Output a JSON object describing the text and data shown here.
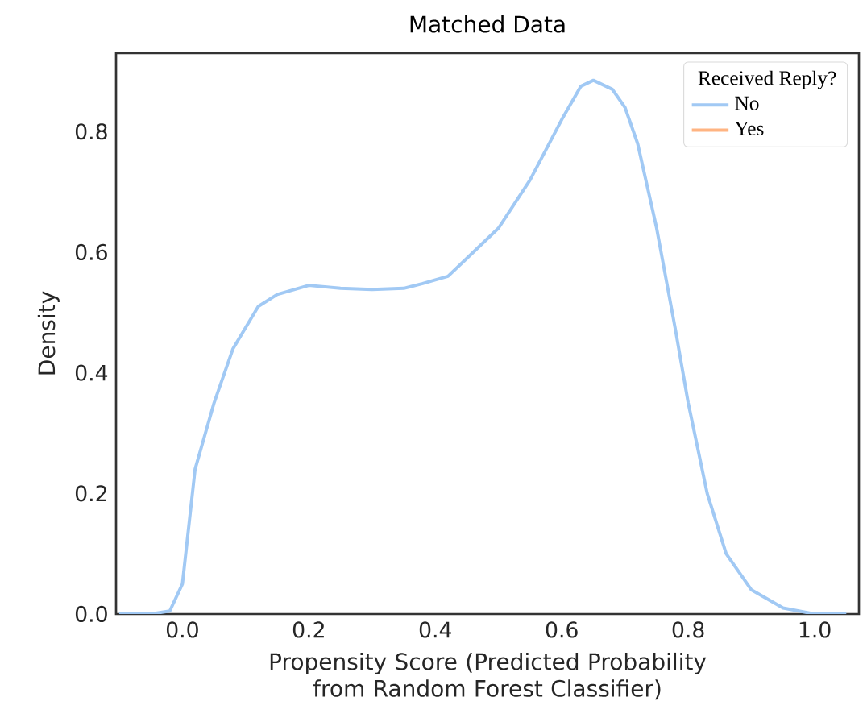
{
  "chart_data": {
    "type": "line",
    "title": "Matched Data",
    "xlabel": "Propensity Score (Predicted Probability from Random Forest Classifier)",
    "ylabel": "Density",
    "legend_title": "Received Reply?",
    "x": [
      -0.1,
      -0.05,
      -0.02,
      0.0,
      0.02,
      0.05,
      0.08,
      0.12,
      0.15,
      0.2,
      0.25,
      0.3,
      0.35,
      0.38,
      0.42,
      0.45,
      0.5,
      0.55,
      0.6,
      0.63,
      0.65,
      0.68,
      0.7,
      0.72,
      0.75,
      0.78,
      0.8,
      0.83,
      0.86,
      0.9,
      0.95,
      1.0,
      1.05
    ],
    "series": [
      {
        "name": "No",
        "color": "#a1c9f4",
        "values": [
          0.0,
          0.0,
          0.005,
          0.05,
          0.24,
          0.35,
          0.44,
          0.51,
          0.53,
          0.545,
          0.54,
          0.538,
          0.54,
          0.548,
          0.56,
          0.59,
          0.64,
          0.72,
          0.82,
          0.875,
          0.885,
          0.87,
          0.84,
          0.78,
          0.64,
          0.47,
          0.35,
          0.2,
          0.1,
          0.04,
          0.01,
          0.0,
          0.0
        ]
      },
      {
        "name": "Yes",
        "color": "#ffb482",
        "values": [
          null,
          null,
          null,
          null,
          null,
          null,
          null,
          null,
          null,
          null,
          null,
          null,
          null,
          null,
          null,
          null,
          null,
          null,
          null,
          null,
          null,
          null,
          null,
          null,
          null,
          null,
          null,
          null,
          null,
          null,
          null,
          null,
          null
        ]
      }
    ],
    "xlim": [
      -0.105,
      1.07
    ],
    "ylim": [
      0,
      0.93
    ],
    "xticks": [
      {
        "value": 0,
        "label": "0.0"
      },
      {
        "value": 0.2,
        "label": "0.2"
      },
      {
        "value": 0.4,
        "label": "0.4"
      },
      {
        "value": 0.6,
        "label": "0.6"
      },
      {
        "value": 0.8,
        "label": "0.8"
      },
      {
        "value": 1,
        "label": "1.0"
      }
    ],
    "yticks": [
      {
        "value": 0,
        "label": "0.0"
      },
      {
        "value": 0.2,
        "label": "0.2"
      },
      {
        "value": 0.4,
        "label": "0.4"
      },
      {
        "value": 0.6,
        "label": "0.6"
      },
      {
        "value": 0.8,
        "label": "0.8"
      }
    ],
    "legend": "top right",
    "grid": false,
    "marker": "none",
    "line_style": "solid"
  }
}
